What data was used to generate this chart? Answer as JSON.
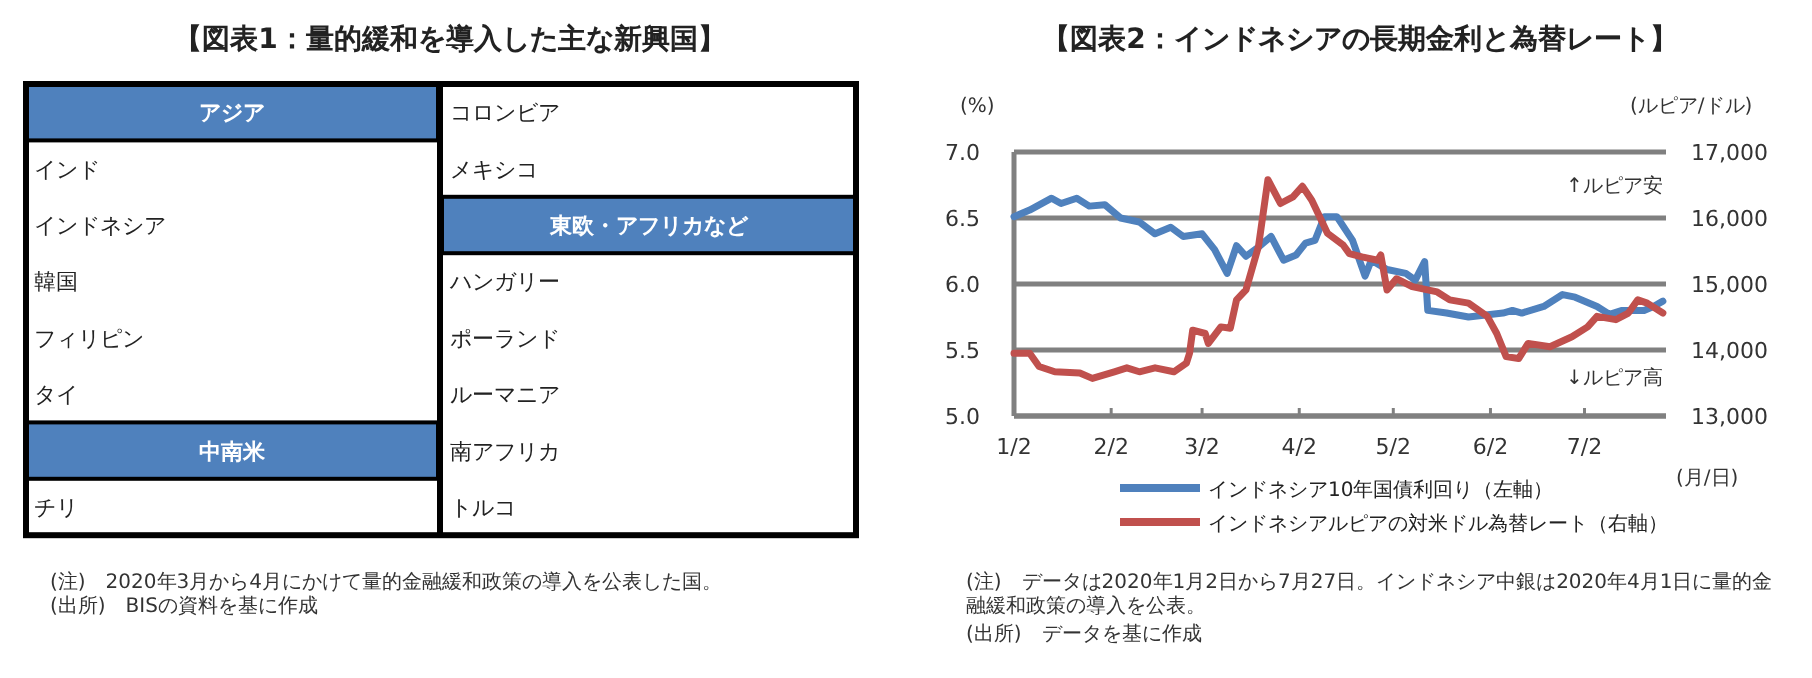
{
  "chart_data": [
    {
      "type": "other",
      "title": "【図表1：量的緩和を導入した主な新興国】",
      "categories": [
        "アジア",
        "インド",
        "インドネシア",
        "韓国",
        "フィリピン",
        "タイ",
        "中南米",
        "チリ",
        "コロンビア",
        "メキシコ",
        "東欧・アフリカなど",
        "ハンガリー",
        "ポーランド",
        "ルーマニア",
        "南アフリカ",
        "トルコ"
      ],
      "annotations": [
        "(注)　2020年3月から4月にかけて量的金融緩和政策の導入を公表した国。",
        "(出所)　BISの資料を基に作成"
      ]
    },
    {
      "type": "line",
      "title": "【図表2：インドネシアの長期金利と為替レート】",
      "xlabel": "(月/日)",
      "ylabel": "(%)",
      "y2label": "(ルピア/ドル)",
      "xlim": [
        "2020-01-02",
        "2020-07-28"
      ],
      "xticks": [
        {
          "value": "2020-01-02",
          "label": "1/2"
        },
        {
          "value": "2020-02-02",
          "label": "2/2"
        },
        {
          "value": "2020-03-02",
          "label": "3/2"
        },
        {
          "value": "2020-04-02",
          "label": "4/2"
        },
        {
          "value": "2020-05-02",
          "label": "5/2"
        },
        {
          "value": "2020-06-02",
          "label": "6/2"
        },
        {
          "value": "2020-07-02",
          "label": "7/2"
        }
      ],
      "ylim": [
        5,
        7
      ],
      "yticks": [
        {
          "value": 5,
          "label": "5.0"
        },
        {
          "value": 5.5,
          "label": "5.5"
        },
        {
          "value": 6,
          "label": "6.0"
        },
        {
          "value": 6.5,
          "label": "6.5"
        },
        {
          "value": 7,
          "label": "7.0"
        }
      ],
      "y2lim": [
        13000,
        17000
      ],
      "y2ticks": [
        {
          "value": 13000,
          "label": "13,000"
        },
        {
          "value": 14000,
          "label": "14,000"
        },
        {
          "value": 15000,
          "label": "15,000"
        },
        {
          "value": 16000,
          "label": "16,000"
        },
        {
          "value": 17000,
          "label": "17,000"
        }
      ],
      "grid": "y",
      "legend": "bottom",
      "series": [
        {
          "name": "インドネシア10年国債利回り（左軸）",
          "color": "#4f81bd",
          "x": [
            "2020-01-02",
            "2020-01-07",
            "2020-01-14",
            "2020-01-17",
            "2020-01-22",
            "2020-01-26",
            "2020-01-31",
            "2020-02-05",
            "2020-02-11",
            "2020-02-16",
            "2020-02-21",
            "2020-02-25",
            "2020-03-02",
            "2020-03-06",
            "2020-03-10",
            "2020-03-13",
            "2020-03-16",
            "2020-03-20",
            "2020-03-24",
            "2020-03-28",
            "2020-04-01",
            "2020-04-04",
            "2020-04-07",
            "2020-04-10",
            "2020-04-14",
            "2020-04-19",
            "2020-04-23",
            "2020-04-25",
            "2020-04-30",
            "2020-05-06",
            "2020-05-09",
            "2020-05-12",
            "2020-05-13",
            "2020-05-19",
            "2020-05-26",
            "2020-06-06",
            "2020-06-09",
            "2020-06-12",
            "2020-06-19",
            "2020-06-25",
            "2020-06-29",
            "2020-07-06",
            "2020-07-10",
            "2020-07-14",
            "2020-07-21",
            "2020-07-24",
            "2020-07-27"
          ],
          "values": [
            6.51,
            6.56,
            6.65,
            6.61,
            6.65,
            6.59,
            6.6,
            6.5,
            6.47,
            6.38,
            6.43,
            6.36,
            6.38,
            6.26,
            6.08,
            6.29,
            6.21,
            6.28,
            6.36,
            6.18,
            6.22,
            6.31,
            6.33,
            6.51,
            6.51,
            6.33,
            6.06,
            6.18,
            6.11,
            6.08,
            6.03,
            6.17,
            5.8,
            5.78,
            5.75,
            5.78,
            5.8,
            5.78,
            5.83,
            5.92,
            5.9,
            5.83,
            5.77,
            5.8,
            5.8,
            5.83,
            5.87
          ]
        },
        {
          "name": "インドネシアルピアの対米ドル為替レート（右軸）",
          "color": "#c0504d",
          "axis": "y2",
          "x": [
            "2020-01-02",
            "2020-01-07",
            "2020-01-10",
            "2020-01-15",
            "2020-01-23",
            "2020-01-27",
            "2020-02-03",
            "2020-02-07",
            "2020-02-11",
            "2020-02-16",
            "2020-02-22",
            "2020-02-26",
            "2020-02-27",
            "2020-02-28",
            "2020-03-03",
            "2020-03-04",
            "2020-03-08",
            "2020-03-11",
            "2020-03-13",
            "2020-03-16",
            "2020-03-20",
            "2020-03-23",
            "2020-03-27",
            "2020-03-31",
            "2020-04-03",
            "2020-04-06",
            "2020-04-09",
            "2020-04-11",
            "2020-04-16",
            "2020-04-18",
            "2020-04-22",
            "2020-04-27",
            "2020-04-28",
            "2020-04-30",
            "2020-05-03",
            "2020-05-08",
            "2020-05-16",
            "2020-05-20",
            "2020-05-26",
            "2020-06-01",
            "2020-06-04",
            "2020-06-07",
            "2020-06-11",
            "2020-06-14",
            "2020-06-21",
            "2020-06-28",
            "2020-07-03",
            "2020-07-06",
            "2020-07-12",
            "2020-07-16",
            "2020-07-19",
            "2020-07-22",
            "2020-07-27"
          ],
          "values": [
            13950,
            13950,
            13750,
            13670,
            13650,
            13570,
            13670,
            13730,
            13670,
            13730,
            13670,
            13800,
            13950,
            14300,
            14250,
            14100,
            14350,
            14330,
            14760,
            14910,
            15570,
            16580,
            16220,
            16320,
            16480,
            16270,
            15970,
            15770,
            15590,
            15460,
            15410,
            15360,
            15440,
            14910,
            15080,
            14960,
            14880,
            14760,
            14710,
            14510,
            14250,
            13900,
            13870,
            14100,
            14050,
            14200,
            14350,
            14510,
            14460,
            14560,
            14760,
            14710,
            14560
          ]
        }
      ],
      "annotations": [
        "↑ルピア安",
        "↓ルピア高",
        "(注)　データは2020年1月2日から7月27日。インドネシア中銀は2020年4月1日に量的金融緩和政策の導入を公表。",
        "(出所)　データを基に作成"
      ]
    }
  ]
}
